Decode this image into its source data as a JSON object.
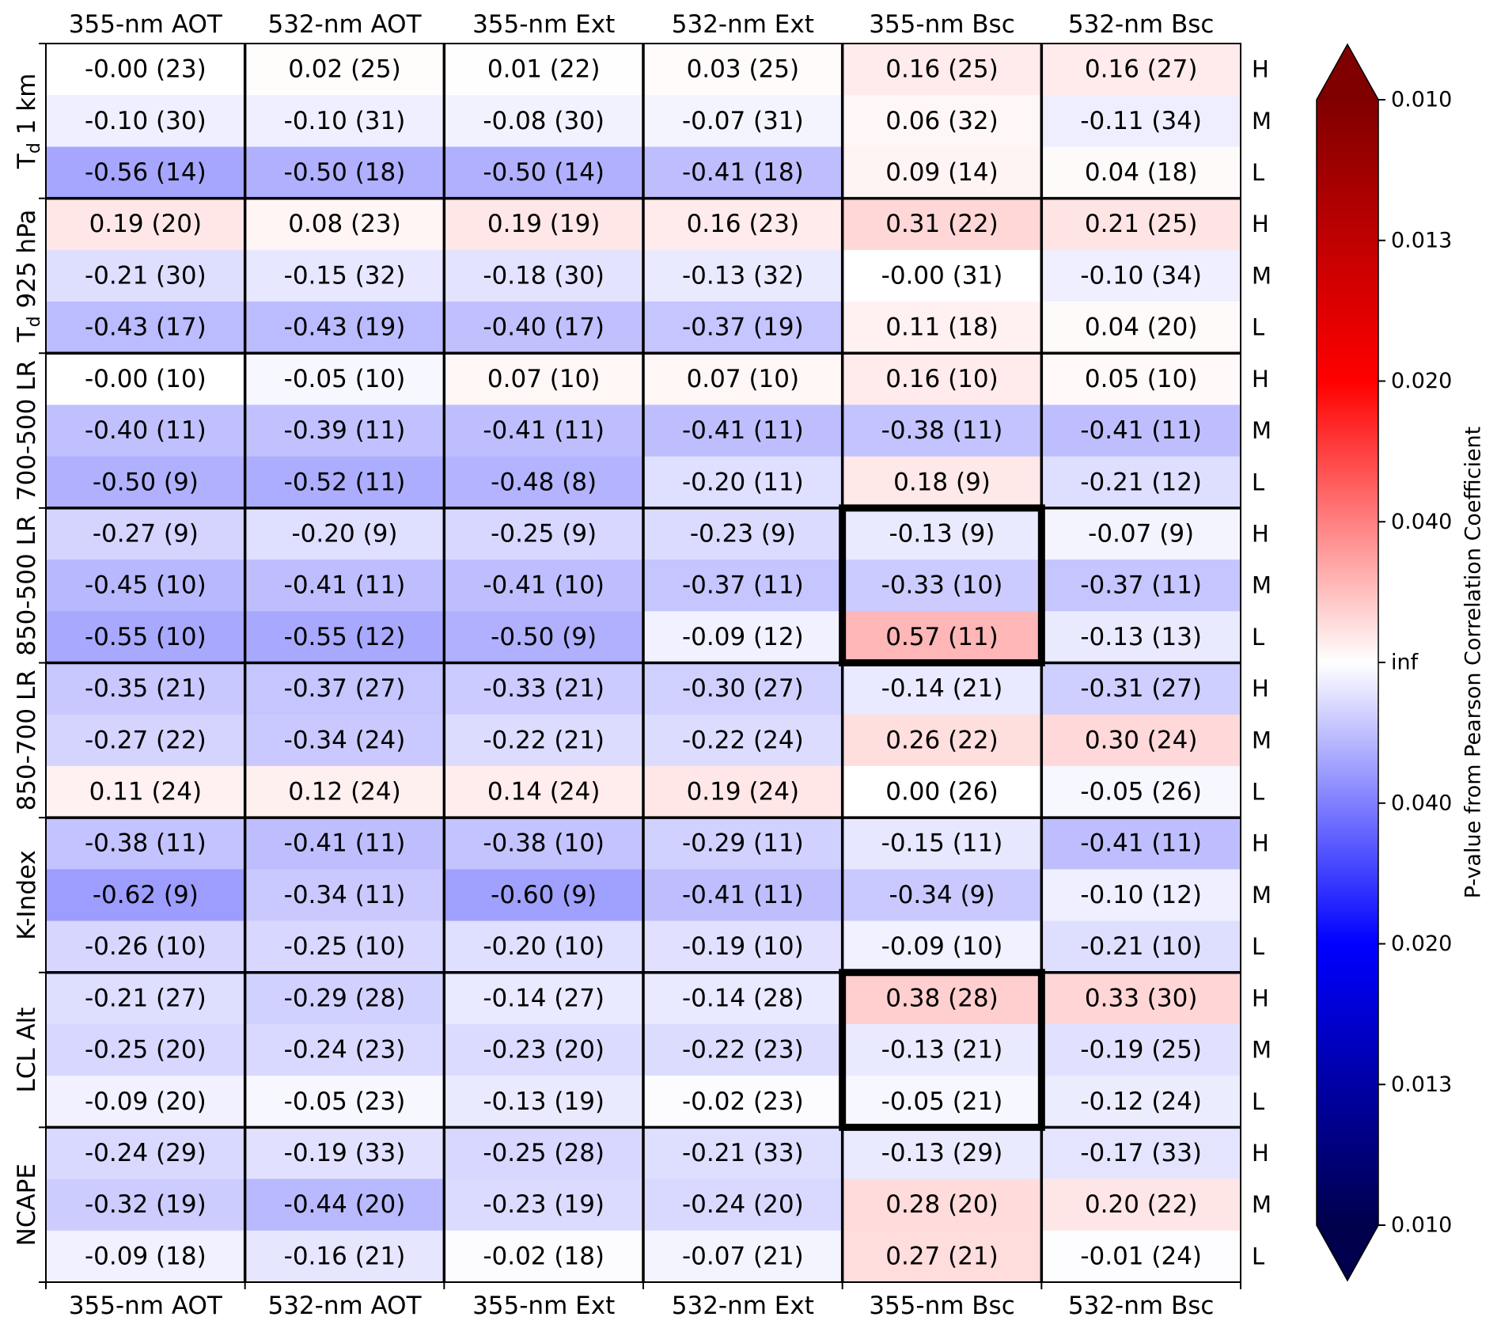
{
  "chart_data": {
    "type": "heatmap",
    "title": "",
    "columns": [
      "355-nm AOT",
      "532-nm AOT",
      "355-nm Ext",
      "532-nm Ext",
      "355-nm Bsc",
      "532-nm Bsc"
    ],
    "groups": [
      "T_d 1 km",
      "T_d 925 hPa",
      "700-500 LR",
      "850-500 LR",
      "850-700 LR",
      "K-Index",
      "LCL Alt",
      "NCAPE"
    ],
    "row_levels": [
      "H",
      "M",
      "L"
    ],
    "cells": [
      [
        "-0.00 (23)",
        "0.02 (25)",
        "0.01 (22)",
        "0.03 (25)",
        "0.16 (25)",
        "0.16 (27)"
      ],
      [
        "-0.10 (30)",
        "-0.10 (31)",
        "-0.08 (30)",
        "-0.07 (31)",
        "0.06 (32)",
        "-0.11 (34)"
      ],
      [
        "-0.56 (14)",
        "-0.50 (18)",
        "-0.50 (14)",
        "-0.41 (18)",
        "0.09 (14)",
        "0.04 (18)"
      ],
      [
        "0.19 (20)",
        "0.08 (23)",
        "0.19 (19)",
        "0.16 (23)",
        "0.31 (22)",
        "0.21 (25)"
      ],
      [
        "-0.21 (30)",
        "-0.15 (32)",
        "-0.18 (30)",
        "-0.13 (32)",
        "-0.00 (31)",
        "-0.10 (34)"
      ],
      [
        "-0.43 (17)",
        "-0.43 (19)",
        "-0.40 (17)",
        "-0.37 (19)",
        "0.11 (18)",
        "0.04 (20)"
      ],
      [
        "-0.00 (10)",
        "-0.05 (10)",
        "0.07 (10)",
        "0.07 (10)",
        "0.16 (10)",
        "0.05 (10)"
      ],
      [
        "-0.40 (11)",
        "-0.39 (11)",
        "-0.41 (11)",
        "-0.41 (11)",
        "-0.38 (11)",
        "-0.41 (11)"
      ],
      [
        "-0.50 (9)",
        "-0.52 (11)",
        "-0.48 (8)",
        "-0.20 (11)",
        "0.18 (9)",
        "-0.21 (12)"
      ],
      [
        "-0.27 (9)",
        "-0.20 (9)",
        "-0.25 (9)",
        "-0.23 (9)",
        "-0.13 (9)",
        "-0.07 (9)"
      ],
      [
        "-0.45 (10)",
        "-0.41 (11)",
        "-0.41 (10)",
        "-0.37 (11)",
        "-0.33 (10)",
        "-0.37 (11)"
      ],
      [
        "-0.55 (10)",
        "-0.55 (12)",
        "-0.50 (9)",
        "-0.09 (12)",
        "0.57 (11)",
        "-0.13 (13)"
      ],
      [
        "-0.35 (21)",
        "-0.37 (27)",
        "-0.33 (21)",
        "-0.30 (27)",
        "-0.14 (21)",
        "-0.31 (27)"
      ],
      [
        "-0.27 (22)",
        "-0.34 (24)",
        "-0.22 (21)",
        "-0.22 (24)",
        "0.26 (22)",
        "0.30 (24)"
      ],
      [
        "0.11 (24)",
        "0.12 (24)",
        "0.14 (24)",
        "0.19 (24)",
        "0.00 (26)",
        "-0.05 (26)"
      ],
      [
        "-0.38 (11)",
        "-0.41 (11)",
        "-0.38 (10)",
        "-0.29 (11)",
        "-0.15 (11)",
        "-0.41 (11)"
      ],
      [
        "-0.62 (9)",
        "-0.34 (11)",
        "-0.60 (9)",
        "-0.41 (11)",
        "-0.34 (9)",
        "-0.10 (12)"
      ],
      [
        "-0.26 (10)",
        "-0.25 (10)",
        "-0.20 (10)",
        "-0.19 (10)",
        "-0.09 (10)",
        "-0.21 (10)"
      ],
      [
        "-0.21 (27)",
        "-0.29 (28)",
        "-0.14 (27)",
        "-0.14 (28)",
        "0.38 (28)",
        "0.33 (30)"
      ],
      [
        "-0.25 (20)",
        "-0.24 (23)",
        "-0.23 (20)",
        "-0.22 (23)",
        "-0.13 (21)",
        "-0.19 (25)"
      ],
      [
        "-0.09 (20)",
        "-0.05 (23)",
        "-0.13 (19)",
        "-0.02 (23)",
        "-0.05 (21)",
        "-0.12 (24)"
      ],
      [
        "-0.24 (29)",
        "-0.19 (33)",
        "-0.25 (28)",
        "-0.21 (33)",
        "-0.13 (29)",
        "-0.17 (33)"
      ],
      [
        "-0.32 (19)",
        "-0.44 (20)",
        "-0.23 (19)",
        "-0.24 (20)",
        "0.28 (20)",
        "0.20 (22)"
      ],
      [
        "-0.09 (18)",
        "-0.16 (21)",
        "-0.02 (18)",
        "-0.07 (21)",
        "0.27 (21)",
        "-0.01 (24)"
      ]
    ],
    "highlight_blocks": [
      {
        "group": "850-500 LR",
        "column": "355-nm Bsc"
      },
      {
        "group": "LCL Alt",
        "column": "355-nm Bsc"
      }
    ],
    "colorbar": {
      "label": "P-value from Pearson Correlation Coefficient",
      "ticks_top_to_bottom": [
        "0.010",
        "0.013",
        "0.020",
        "0.040",
        "inf",
        "0.040",
        "0.020",
        "0.013",
        "0.010"
      ],
      "colormap": "seismic",
      "extend": "both"
    },
    "colors": {
      "positive_max": "#800000",
      "positive_mid": "#ff0000",
      "neutral": "#ffffff",
      "negative_mid": "#0000ff",
      "negative_max": "#00004c"
    }
  }
}
